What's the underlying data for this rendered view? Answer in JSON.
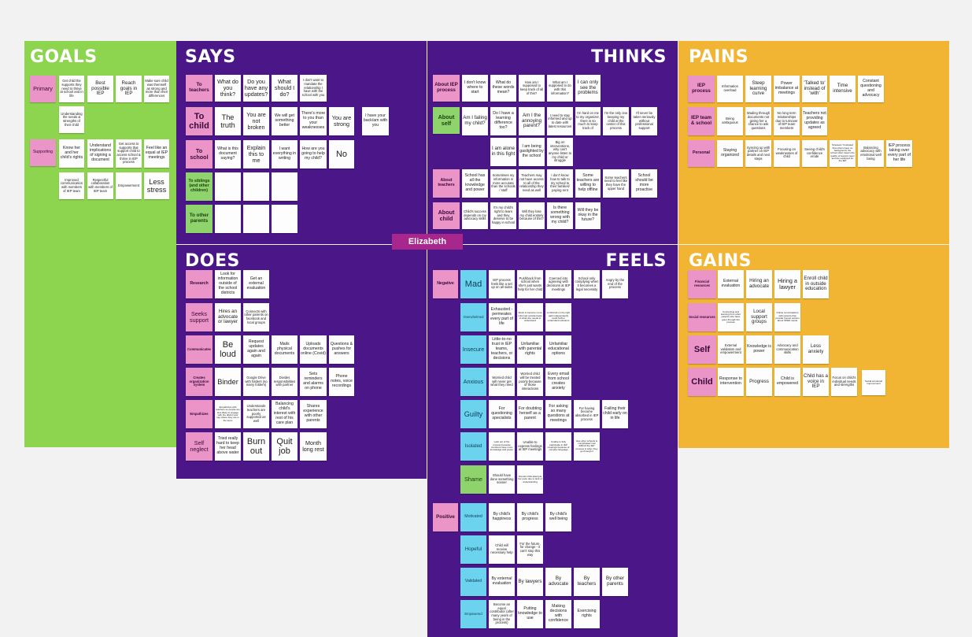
{
  "colors": {
    "background": "#f2f2f2",
    "goals": "#8dd44f",
    "purple": "#4b1688",
    "yellow": "#f2b533",
    "sticky": "#fdfdfd",
    "pink_label": "#ea94c8",
    "green_label": "#8ed36b",
    "cyan_label": "#6cd3ef",
    "center_tag": "#a8278c"
  },
  "center_label": "Elizabeth",
  "panels": {
    "goals": "GOALS",
    "says": "SAYS",
    "thinks": "THINKS",
    "pains": "PAINS",
    "does": "DOES",
    "feels": "FEELS",
    "gains": "GAINS"
  },
  "goals": {
    "labels": [
      "Primary",
      "Supporting"
    ],
    "notes": [
      "Get child the supports they need to thrive at school and in life",
      "Best possible IEP",
      "Reach goals in IEP",
      "Make sure child was themself as strong and more than their differences",
      "Understanding the needs & strengths of their child",
      "Know her and her child's rights",
      "Understand implications of signing a document",
      "Get access to supports that support child to access school & thrive in IEP process",
      "Feel like an equal at IEP meetings",
      "Improved communication with members of IEP team",
      "Respectful collaboration with members of IEP team",
      "Empowerment",
      "Less stress"
    ]
  },
  "says": {
    "labels": [
      "To teachers",
      "To child",
      "To school",
      "To siblings (and other children)",
      "To other parents"
    ],
    "notes": [
      "What do you think?",
      "Do you have any updates?",
      "What should I do?",
      "I don't want to mandate the relationship I have with the school with you",
      "The truth",
      "You are not broken",
      "We will get something better",
      "There's more to you than your weaknesses",
      "You are strong",
      "I have your back/am with you",
      "What is this document saying?",
      "Explain this to me",
      "I want everything in writing",
      "How are you going to help my child?",
      "No"
    ]
  },
  "thinks": {
    "labels": [
      "About IEP process",
      "About self",
      "About teachers",
      "About child"
    ],
    "notes": [
      "I don't know where to start",
      "What do these words mean?",
      "How am I supposed to keep track of all of this?",
      "What am I supposed to do with this information?",
      "I can only see the problems",
      "Am I failing my child?",
      "Do I have a learning difference too?",
      "Am I the annoying parent?",
      "I need to stay informed and up to date with latest resources",
      "I'm hard on me to my organizer, there is so much to keep track of",
      "I'm the only one keeping my child at the center of this process",
      "I'll never be taken seriously without professional support",
      "I am alone in this fight",
      "I am being gaslighted by the school",
      "Big on interventions, why can't anyone listen to my child or struggle",
      "School has all the knowledge and power",
      "Sometimes my information is more accurate than the schools / staff",
      "Teachers may not have access to all of the relationship they need as well",
      "I don't know how to talk to my school to their families/ paying rent",
      "Some teachers are willing to help offline",
      "Some teachers need to feel like they have the upper hand",
      "School should be more proactive",
      "Child's success depends on my advocacy skills",
      "It's my child's right to learn and they deserve to be happy in school",
      "Will they lose my child entirely because of this?",
      "Is there something wrong with my child?",
      "Will they be okay in the future?"
    ]
  },
  "pains": {
    "labels": [
      "IEP process",
      "IEP team & school",
      "Personal"
    ],
    "notes": [
      "Information overload",
      "Steep learning curve",
      "Power imbalance at meetings",
      "'Talked to' instead of 'with'",
      "Time intensive",
      "Constant questioning and advocacy",
      "Being ambiguous",
      "Wading through documents not giving her a chance to ask questions",
      "No long term relationships due to turnover of IEP team members",
      "Teachers not providing updates as agreed",
      "Staying organized",
      "Syncing up with partner on IEP details and next steps",
      "Focusing on weaknesses of child",
      "Seeing child's confidence erode",
      "Stressed / frustrated that others have no background, the school often lowers the quality of support team and are equipped for the IEP",
      "Balancing advocacy with emotional well being",
      "IEP process taking over every part of her life"
    ]
  },
  "does": {
    "labels": [
      "Research",
      "Seeks support",
      "Communicates",
      "Creates organization system",
      "Empathizes",
      "Self neglect"
    ],
    "notes": [
      "Look for information outside of the school districts",
      "Get an external evaluation",
      "Hires an advocate or lawyer",
      "Connects with other parents on facebook and local groups",
      "Be loud",
      "Request updates again and again",
      "Mails physical documents",
      "Uploads documents online (Covid)",
      "Questions & pushes for answers",
      "Binder",
      "Google Drive with folders (so many folders)",
      "Divides responsibilities with partner",
      "Sets reminders and alarms on phone",
      "Phone notes, voice recordings",
      "Empathizes with teachers so people are less likely to engage with the district and say where they are in the team",
      "Understands teachers are poorly supported as well",
      "Balancing child's interest with rest of his care plan",
      "Shares experience with other parents",
      "Tried really hard to keep her head above water",
      "Burn out",
      "Quit job",
      "Month long rest"
    ]
  },
  "feels": {
    "labels": [
      "Negative",
      "Mad",
      "Overwhelmed",
      "Insecure",
      "Anxious",
      "Guilty",
      "Isolated",
      "Shame",
      "Positive",
      "Motivated",
      "Hopeful",
      "Validated",
      "Empowered"
    ],
    "notes": [
      "IEP process feels like a set up on all sides",
      "Pushback from school when she's just wants help for her child",
      "Coerced into agreeing with decisions at IEP meetings",
      "School only complying when it becomes a legal necessity",
      "Angry by the end of the process",
      "Exhausted - permeates every part of life",
      "Stuck to become more informed outside basis of what she needs to understand",
      "A child fell on the right path independently could further understand solutions",
      "Little-to-no trust in IEP teams, teachers, or decisions",
      "Unfamiliar with parental rights",
      "Unfamiliar educational options",
      "Worried child will never get what they need",
      "Worried child will be treated poorly because of those interactions",
      "Every email from school creates anxiety",
      "For questioning specialists",
      "For doubting herself as a parent",
      "For asking so many questions at meetings",
      "For having become absorbed in IEP process",
      "Failing their child early on in life",
      "Lack out of the process because members have more knowledge and power",
      "Unable to express feelings at IEP meetings",
      "Unable to fully participate in IEP meetings because of complex language",
      "Has other schools is complicated now difficult the IEP process is when they go through it",
      "Should have done something sooner",
      "Friends child attempts her pace due to lack of understanding",
      "By child's happiness",
      "By child's progress",
      "By child's well being",
      "Child will receive necessary help",
      "For the future, for change - it can't stop this way",
      "By external evaluation",
      "By lawyers",
      "By advocate",
      "By teachers",
      "By other parents",
      "Become an equal contributor (after many years of being in the process)",
      "Putting knowledge to use",
      "Making decisions with confidence",
      "Exercising rights"
    ]
  },
  "gains": {
    "labels": [
      "Financial resources",
      "Social resources",
      "Self",
      "Child"
    ],
    "notes": [
      "External evaluation",
      "Hiring an advocate",
      "Hiring a lawyer",
      "Enroll child in outside education",
      "Connecting and learning from other parents who have gone through the process",
      "Local support groups",
      "Online conversations with parents that provide honest opinion about SPED needs",
      "External validation and empowerment",
      "Knowledge is power",
      "Advocacy and communication skills",
      "Less anxiety",
      "Response to intervention",
      "Progress",
      "Child is empowered",
      "Child has a voice in IEP",
      "Focus on child's individual needs and strengths",
      "Social emotional improvement"
    ]
  }
}
